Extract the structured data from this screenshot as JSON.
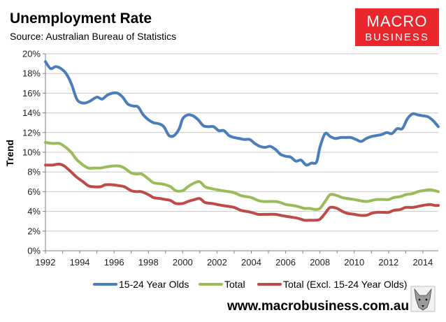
{
  "header": {
    "title": "Unemployment Rate",
    "subtitle": "Source: Australian Bureau of Statistics"
  },
  "logo": {
    "line1": "MACRO",
    "line2": "BUSINESS"
  },
  "footer": {
    "website": "www.macrobusiness.com.au"
  },
  "colors": {
    "youth": "#4a7ebb",
    "total": "#9bbb59",
    "excl": "#be4b48",
    "logo_bg": "#e8262b"
  },
  "chart_data": {
    "type": "line",
    "title": "Unemployment Rate",
    "subtitle": "Source: Australian Bureau of Statistics",
    "xlabel": "",
    "ylabel": "Trend",
    "xlim": [
      1992,
      2014.9
    ],
    "ylim": [
      0,
      20
    ],
    "x_ticks": [
      "1992",
      "1994",
      "1996",
      "1998",
      "2000",
      "2002",
      "2004",
      "2006",
      "2008",
      "2010",
      "2012",
      "2014"
    ],
    "y_ticks": [
      "0%",
      "2%",
      "4%",
      "6%",
      "8%",
      "10%",
      "12%",
      "14%",
      "16%",
      "18%",
      "20%"
    ],
    "legend_position": "bottom",
    "series": [
      {
        "name": "15-24 Year Olds",
        "color": "#4a7ebb",
        "x": [
          1992.0,
          1992.3,
          1992.6,
          1992.9,
          1993.2,
          1993.5,
          1993.8,
          1994.0,
          1994.3,
          1994.6,
          1995.0,
          1995.3,
          1995.6,
          1995.9,
          1996.2,
          1996.5,
          1996.8,
          1997.1,
          1997.4,
          1997.7,
          1998.0,
          1998.3,
          1998.6,
          1998.9,
          1999.2,
          1999.5,
          1999.8,
          2000.0,
          2000.3,
          2000.6,
          2000.9,
          2001.2,
          2001.5,
          2001.8,
          2002.1,
          2002.4,
          2002.7,
          2003.0,
          2003.3,
          2003.6,
          2003.9,
          2004.2,
          2004.5,
          2004.8,
          2005.1,
          2005.4,
          2005.7,
          2006.0,
          2006.3,
          2006.6,
          2006.9,
          2007.2,
          2007.5,
          2007.8,
          2008.0,
          2008.3,
          2008.6,
          2008.9,
          2009.2,
          2009.5,
          2009.8,
          2010.1,
          2010.4,
          2010.7,
          2011.0,
          2011.3,
          2011.6,
          2011.9,
          2012.2,
          2012.5,
          2012.8,
          2013.1,
          2013.4,
          2013.7,
          2014.0,
          2014.3,
          2014.6,
          2014.9
        ],
        "values": [
          19.2,
          18.5,
          18.7,
          18.5,
          18.0,
          17.0,
          15.5,
          15.1,
          15.0,
          15.2,
          15.6,
          15.4,
          15.8,
          16.0,
          16.0,
          15.6,
          14.9,
          14.7,
          14.6,
          13.8,
          13.3,
          13.0,
          12.9,
          12.6,
          11.7,
          11.7,
          12.4,
          13.4,
          13.8,
          13.7,
          13.3,
          12.7,
          12.6,
          12.6,
          12.2,
          12.2,
          11.7,
          11.5,
          11.4,
          11.3,
          11.3,
          10.9,
          10.6,
          10.5,
          10.6,
          10.3,
          9.8,
          9.6,
          9.5,
          9.1,
          9.2,
          8.7,
          8.9,
          9.0,
          10.5,
          11.9,
          11.6,
          11.4,
          11.5,
          11.5,
          11.5,
          11.3,
          11.1,
          11.4,
          11.6,
          11.7,
          11.8,
          12.0,
          11.9,
          12.4,
          12.4,
          13.4,
          13.9,
          13.8,
          13.7,
          13.6,
          13.2,
          12.6
        ]
      },
      {
        "name": "Total",
        "color": "#9bbb59",
        "x": [
          1992.0,
          1992.4,
          1992.8,
          1993.1,
          1993.5,
          1993.8,
          1994.2,
          1994.5,
          1994.8,
          1995.2,
          1995.5,
          1995.9,
          1996.3,
          1996.6,
          1997.0,
          1997.3,
          1997.6,
          1998.0,
          1998.3,
          1998.7,
          1999.0,
          1999.3,
          1999.6,
          2000.0,
          2000.3,
          2000.7,
          2001.0,
          2001.3,
          2001.7,
          2002.0,
          2002.3,
          2002.7,
          2003.0,
          2003.4,
          2003.7,
          2004.0,
          2004.4,
          2004.7,
          2005.0,
          2005.4,
          2005.7,
          2006.0,
          2006.4,
          2006.7,
          2007.1,
          2007.4,
          2007.7,
          2008.0,
          2008.3,
          2008.6,
          2009.0,
          2009.3,
          2009.6,
          2010.0,
          2010.3,
          2010.7,
          2011.0,
          2011.3,
          2011.7,
          2012.0,
          2012.3,
          2012.7,
          2013.0,
          2013.4,
          2013.7,
          2014.0,
          2014.4,
          2014.7,
          2014.9
        ],
        "values": [
          11.0,
          10.9,
          10.9,
          10.6,
          10.0,
          9.3,
          8.7,
          8.4,
          8.4,
          8.4,
          8.5,
          8.6,
          8.6,
          8.4,
          7.9,
          7.8,
          7.8,
          7.3,
          6.9,
          6.8,
          6.7,
          6.5,
          6.1,
          6.1,
          6.5,
          6.9,
          7.0,
          6.5,
          6.3,
          6.2,
          6.1,
          6.0,
          5.9,
          5.6,
          5.5,
          5.4,
          5.1,
          5.0,
          5.0,
          5.0,
          4.9,
          4.7,
          4.6,
          4.5,
          4.3,
          4.3,
          4.2,
          4.3,
          5.0,
          5.7,
          5.6,
          5.4,
          5.3,
          5.2,
          5.1,
          5.0,
          5.1,
          5.2,
          5.2,
          5.2,
          5.4,
          5.5,
          5.7,
          5.8,
          6.0,
          6.1,
          6.2,
          6.1,
          6.0
        ]
      },
      {
        "name": "Total (Excl. 15-24 Year Olds)",
        "color": "#be4b48",
        "x": [
          1992.0,
          1992.4,
          1992.8,
          1993.1,
          1993.5,
          1993.8,
          1994.2,
          1994.5,
          1994.8,
          1995.2,
          1995.5,
          1995.9,
          1996.3,
          1996.6,
          1997.0,
          1997.3,
          1997.6,
          1998.0,
          1998.3,
          1998.7,
          1999.0,
          1999.3,
          1999.6,
          2000.0,
          2000.3,
          2000.7,
          2001.0,
          2001.3,
          2001.7,
          2002.0,
          2002.3,
          2002.7,
          2003.0,
          2003.4,
          2003.7,
          2004.0,
          2004.4,
          2004.7,
          2005.0,
          2005.4,
          2005.7,
          2006.0,
          2006.4,
          2006.7,
          2007.1,
          2007.4,
          2007.7,
          2008.0,
          2008.3,
          2008.6,
          2009.0,
          2009.3,
          2009.6,
          2010.0,
          2010.3,
          2010.7,
          2011.0,
          2011.3,
          2011.7,
          2012.0,
          2012.3,
          2012.7,
          2013.0,
          2013.4,
          2013.7,
          2014.0,
          2014.4,
          2014.7,
          2014.9
        ],
        "values": [
          8.7,
          8.7,
          8.8,
          8.6,
          8.0,
          7.5,
          7.0,
          6.6,
          6.5,
          6.5,
          6.7,
          6.7,
          6.6,
          6.5,
          6.1,
          6.0,
          6.0,
          5.7,
          5.4,
          5.3,
          5.2,
          5.1,
          4.8,
          4.8,
          5.0,
          5.2,
          5.3,
          4.9,
          4.8,
          4.7,
          4.6,
          4.5,
          4.4,
          4.1,
          4.0,
          3.9,
          3.7,
          3.7,
          3.7,
          3.7,
          3.6,
          3.5,
          3.4,
          3.3,
          3.1,
          3.1,
          3.1,
          3.2,
          3.8,
          4.4,
          4.3,
          4.0,
          3.8,
          3.7,
          3.6,
          3.6,
          3.8,
          3.9,
          3.9,
          3.9,
          4.1,
          4.2,
          4.4,
          4.4,
          4.5,
          4.6,
          4.7,
          4.6,
          4.6
        ]
      }
    ]
  }
}
